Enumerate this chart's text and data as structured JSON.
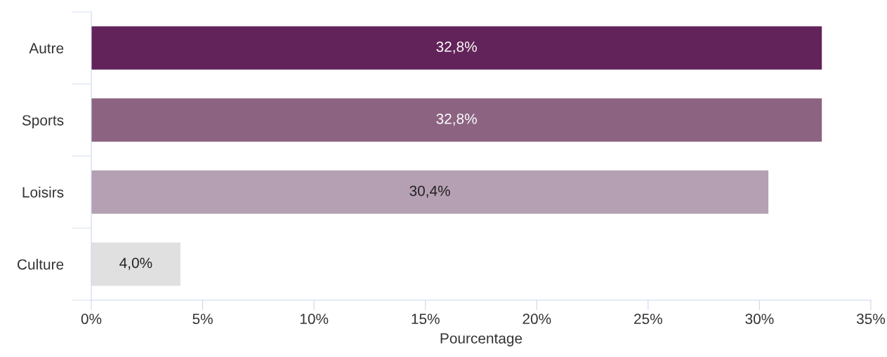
{
  "chart_data": {
    "type": "bar",
    "orientation": "horizontal",
    "xlabel": "Pourcentage",
    "categories": [
      "Autre",
      "Sports",
      "Loisirs",
      "Culture"
    ],
    "values": [
      32.8,
      32.8,
      30.4,
      4.0
    ],
    "colors": [
      "#62235a",
      "#8c6482",
      "#b5a0b3",
      "#e0e0e0"
    ],
    "value_labels": [
      "32,8%",
      "32,8%",
      "30,4%",
      "4,0%"
    ],
    "xlim": [
      0,
      35
    ],
    "xticks": [
      {
        "value": 0,
        "label": "0%"
      },
      {
        "value": 5,
        "label": "5%"
      },
      {
        "value": 10,
        "label": "10%"
      },
      {
        "value": 15,
        "label": "15%"
      },
      {
        "value": 20,
        "label": "20%"
      },
      {
        "value": 25,
        "label": "25%"
      },
      {
        "value": 30,
        "label": "30%"
      },
      {
        "value": 35,
        "label": "35%"
      }
    ],
    "grid": false,
    "legend": false
  }
}
